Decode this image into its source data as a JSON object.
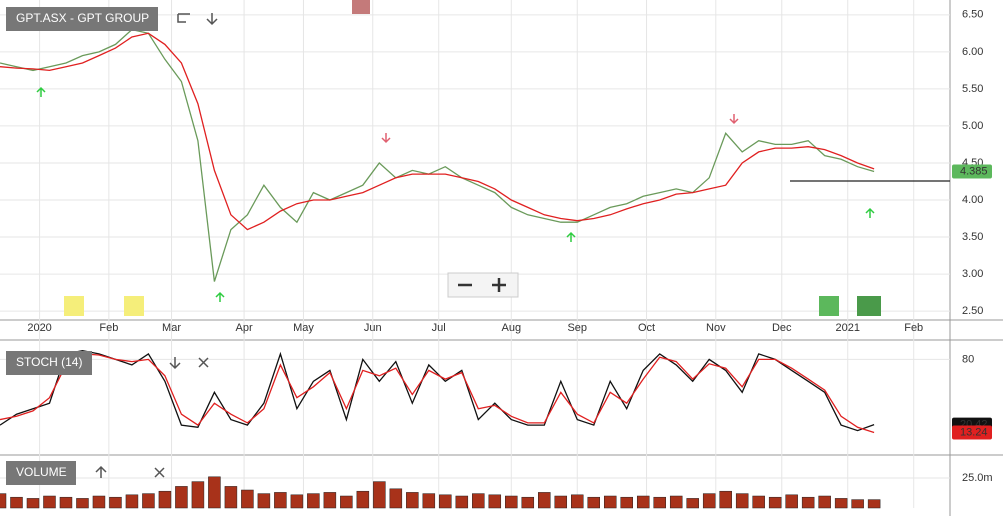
{
  "chart_data": [
    {
      "type": "line",
      "title": "GPT.ASX - GPT GROUP",
      "x": [
        0,
        5,
        10,
        15,
        20,
        25,
        30,
        35,
        40,
        45,
        50,
        55,
        60,
        65,
        70,
        75,
        80,
        85,
        90,
        95,
        100,
        105,
        110,
        115,
        120,
        125,
        130,
        135,
        140,
        145,
        150,
        155,
        160,
        165,
        170,
        175,
        180,
        185,
        190,
        195,
        200,
        205,
        210,
        215,
        220,
        225,
        230,
        235,
        240,
        245,
        250,
        255,
        260,
        265
      ],
      "series": [
        {
          "color": "#6a9a5a",
          "values": [
            5.85,
            5.8,
            5.75,
            5.8,
            5.85,
            5.95,
            6.0,
            6.1,
            6.3,
            6.25,
            5.9,
            5.6,
            4.8,
            2.9,
            3.6,
            3.8,
            4.2,
            3.9,
            3.7,
            4.1,
            4.0,
            4.1,
            4.2,
            4.5,
            4.3,
            4.4,
            4.35,
            4.45,
            4.3,
            4.2,
            4.1,
            3.9,
            3.8,
            3.75,
            3.7,
            3.7,
            3.8,
            3.9,
            3.95,
            4.05,
            4.1,
            4.15,
            4.1,
            4.3,
            4.9,
            4.65,
            4.8,
            4.75,
            4.75,
            4.8,
            4.6,
            4.55,
            4.45,
            4.385
          ]
        },
        {
          "color": "#e02020",
          "values": [
            5.8,
            5.78,
            5.77,
            5.75,
            5.8,
            5.85,
            5.95,
            6.05,
            6.2,
            6.25,
            6.1,
            5.85,
            5.3,
            4.4,
            3.8,
            3.6,
            3.7,
            3.85,
            3.95,
            4.0,
            4.0,
            4.05,
            4.1,
            4.2,
            4.3,
            4.35,
            4.35,
            4.35,
            4.3,
            4.25,
            4.15,
            4.0,
            3.9,
            3.8,
            3.75,
            3.72,
            3.75,
            3.8,
            3.88,
            3.95,
            4.0,
            4.08,
            4.1,
            4.15,
            4.2,
            4.5,
            4.65,
            4.7,
            4.7,
            4.72,
            4.68,
            4.6,
            4.5,
            4.42
          ]
        }
      ],
      "xlim": [
        0,
        288
      ],
      "xticks": [
        {
          "value": 12,
          "label": "2020"
        },
        {
          "value": 33,
          "label": "Feb"
        },
        {
          "value": 52,
          "label": "Mar"
        },
        {
          "value": 74,
          "label": "Apr"
        },
        {
          "value": 92,
          "label": "May"
        },
        {
          "value": 113,
          "label": "Jun"
        },
        {
          "value": 133,
          "label": "Jul"
        },
        {
          "value": 155,
          "label": "Aug"
        },
        {
          "value": 175,
          "label": "Sep"
        },
        {
          "value": 196,
          "label": "Oct"
        },
        {
          "value": 217,
          "label": "Nov"
        },
        {
          "value": 237,
          "label": "Dec"
        },
        {
          "value": 257,
          "label": "2021"
        },
        {
          "value": 277,
          "label": "Feb"
        }
      ],
      "ylim": [
        2.38,
        6.7
      ],
      "yticks": [
        {
          "value": 2.5,
          "label": "2.50"
        },
        {
          "value": 3,
          "label": "3.00"
        },
        {
          "value": 3.5,
          "label": "3.50"
        },
        {
          "value": 4,
          "label": "4.00"
        },
        {
          "value": 4.5,
          "label": "4.50"
        },
        {
          "value": 5,
          "label": "5.00"
        },
        {
          "value": 5.5,
          "label": "5.50"
        },
        {
          "value": 6,
          "label": "6.00"
        },
        {
          "value": 6.5,
          "label": "6.50"
        }
      ],
      "grid": true
    },
    {
      "type": "line",
      "title": "STOCH (14)",
      "x": [
        0,
        5,
        10,
        15,
        20,
        25,
        30,
        35,
        40,
        45,
        50,
        55,
        60,
        65,
        70,
        75,
        80,
        85,
        90,
        95,
        100,
        105,
        110,
        115,
        120,
        125,
        130,
        135,
        140,
        145,
        150,
        155,
        160,
        165,
        170,
        175,
        180,
        185,
        190,
        195,
        200,
        205,
        210,
        215,
        220,
        225,
        230,
        235,
        240,
        245,
        250,
        255,
        260,
        265
      ],
      "series": [
        {
          "color": "#111111",
          "values": [
            20,
            30,
            35,
            40,
            85,
            88,
            85,
            80,
            75,
            85,
            60,
            20,
            18,
            50,
            25,
            20,
            40,
            85,
            35,
            60,
            70,
            25,
            80,
            60,
            78,
            40,
            75,
            60,
            70,
            25,
            40,
            25,
            20,
            20,
            60,
            25,
            20,
            60,
            35,
            70,
            85,
            75,
            60,
            80,
            70,
            50,
            85,
            80,
            70,
            60,
            50,
            20,
            15,
            20.42
          ]
        },
        {
          "color": "#e02020",
          "values": [
            25,
            28,
            33,
            45,
            75,
            85,
            84,
            80,
            78,
            80,
            65,
            30,
            20,
            40,
            30,
            22,
            35,
            75,
            45,
            55,
            68,
            35,
            70,
            65,
            72,
            48,
            70,
            62,
            68,
            35,
            38,
            28,
            22,
            22,
            50,
            30,
            22,
            50,
            40,
            62,
            82,
            78,
            62,
            76,
            72,
            55,
            80,
            80,
            72,
            62,
            52,
            28,
            18,
            13.24
          ]
        }
      ],
      "xlim": [
        0,
        288
      ],
      "ylim": [
        0,
        95
      ],
      "yticks": [
        80
      ],
      "grid": true
    },
    {
      "type": "bar",
      "title": "VOLUME",
      "x": [
        0,
        5,
        10,
        15,
        20,
        25,
        30,
        35,
        40,
        45,
        50,
        55,
        60,
        65,
        70,
        75,
        80,
        85,
        90,
        95,
        100,
        105,
        110,
        115,
        120,
        125,
        130,
        135,
        140,
        145,
        150,
        155,
        160,
        165,
        170,
        175,
        180,
        185,
        190,
        195,
        200,
        205,
        210,
        215,
        220,
        225,
        230,
        235,
        240,
        245,
        250,
        255,
        260,
        265
      ],
      "values": [
        12000000,
        9000000,
        8000000,
        10000000,
        9000000,
        8000000,
        10000000,
        9000000,
        11000000,
        12000000,
        14000000,
        18000000,
        22000000,
        26000000,
        18000000,
        15000000,
        12000000,
        13000000,
        11000000,
        12000000,
        13000000,
        10000000,
        14000000,
        22000000,
        16000000,
        13000000,
        12000000,
        11000000,
        10000000,
        12000000,
        11000000,
        10000000,
        9000000,
        13000000,
        10000000,
        11000000,
        9000000,
        10000000,
        9000000,
        10000000,
        9000000,
        10000000,
        8000000,
        12000000,
        14000000,
        12000000,
        10000000,
        9000000,
        11000000,
        9000000,
        10000000,
        8000000,
        7000000,
        7000000
      ],
      "color": "#a8321a",
      "xlim": [
        0,
        288
      ],
      "ylim": [
        0,
        40000000
      ],
      "yticks": [
        {
          "value": 25000000,
          "label": "25.0m"
        }
      ],
      "grid": true
    }
  ]
}
